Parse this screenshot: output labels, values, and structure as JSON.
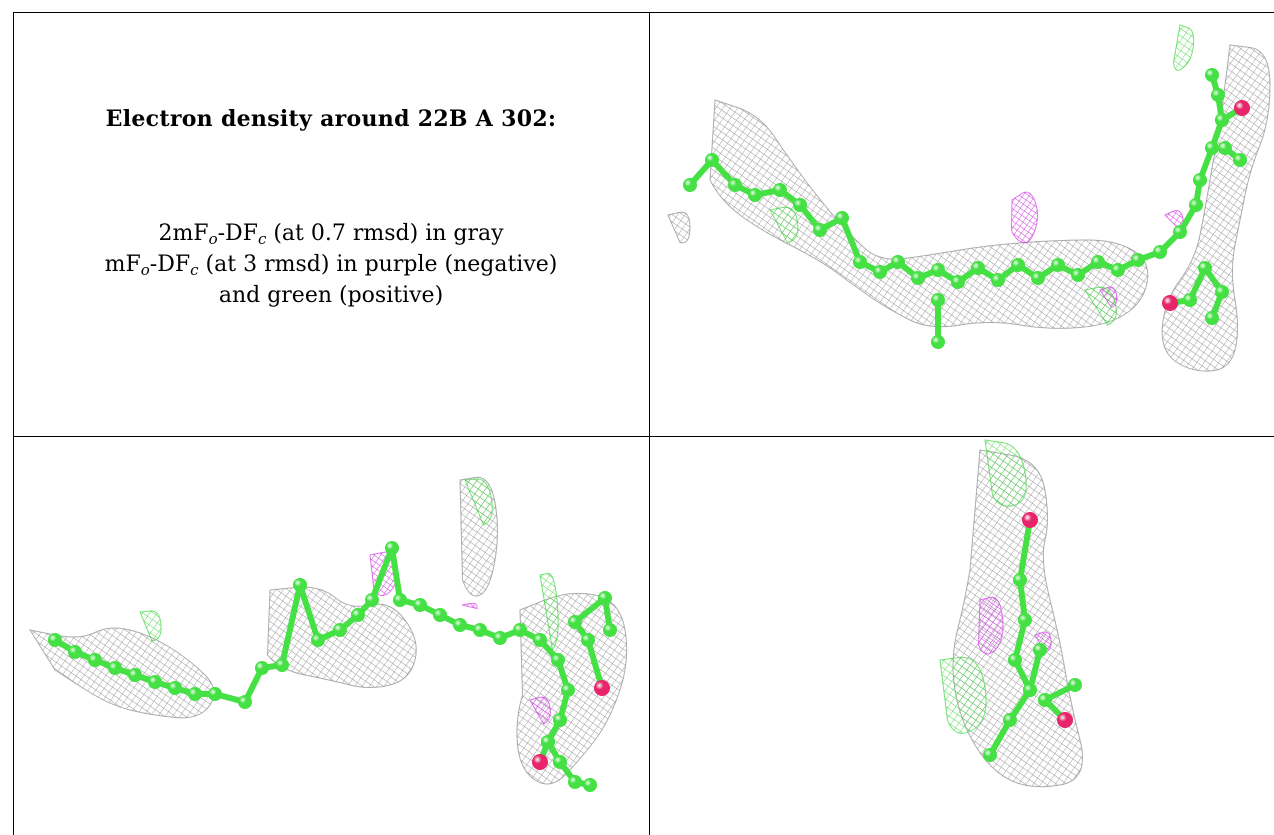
{
  "legend": {
    "title": "Electron density around 22B A 302:",
    "line1": {
      "pre": "2mF",
      "sub1": "o",
      "mid": "-DF",
      "sub2": "c",
      "post": " (at 0.7 rmsd) in gray"
    },
    "line2": {
      "pre": "mF",
      "sub1": "o",
      "mid": "-DF",
      "sub2": "c",
      "post": " (at 3 rmsd) in purple (negative)"
    },
    "line3": "and green (positive)"
  },
  "colors": {
    "carbon": "#44e044",
    "oxygen": "#e8246a",
    "density_2fofc": "#8c8c8c",
    "density_negative": "#d23ce6",
    "density_positive": "#3ed63e",
    "grid": "#000000"
  },
  "views": [
    {
      "name": "view-top-right",
      "atom_count": 38
    },
    {
      "name": "view-bottom-left",
      "atom_count": 44
    },
    {
      "name": "view-bottom-right",
      "atom_count": 10
    }
  ]
}
